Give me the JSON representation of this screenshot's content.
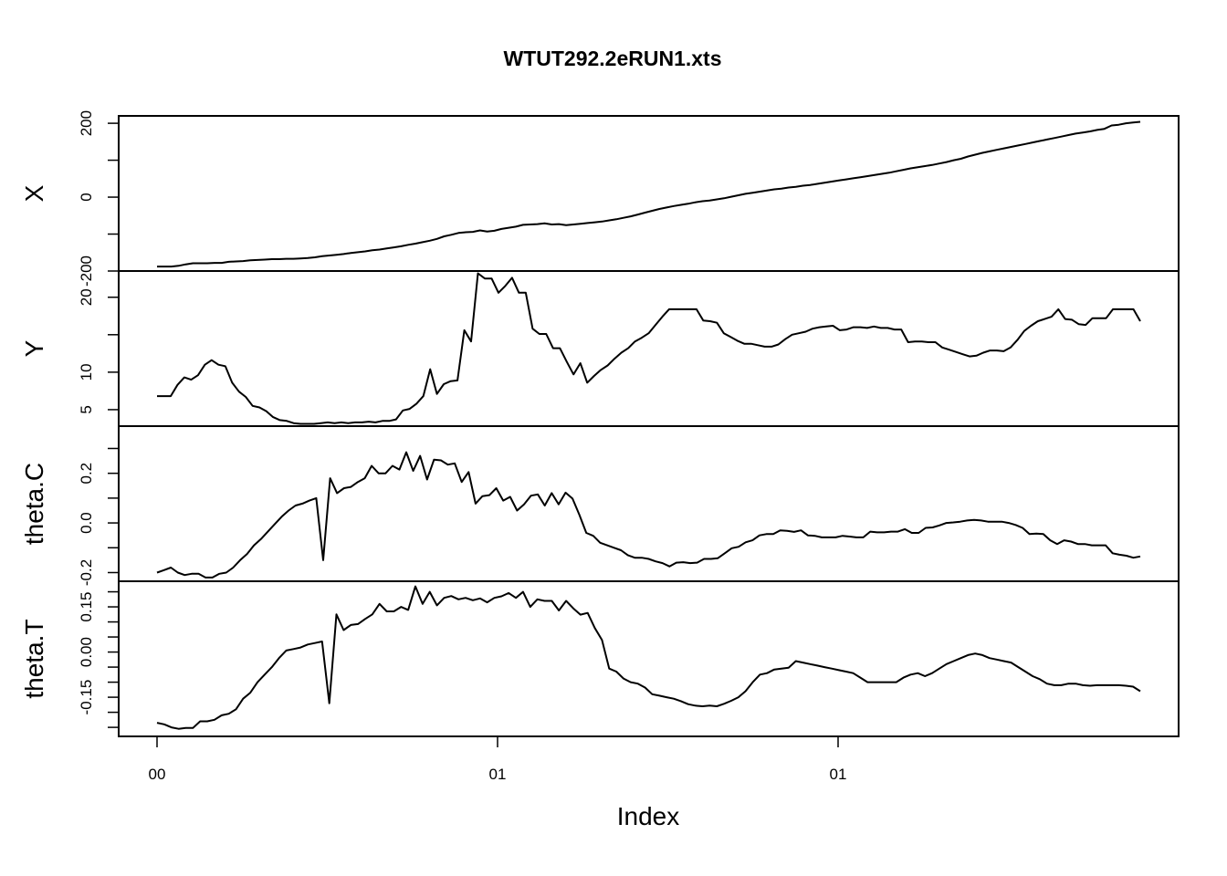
{
  "chart_data": {
    "type": "line",
    "title": "WTUT292.2eRUN1.xts",
    "xlabel": "Index",
    "x_tick_labels": [
      "00",
      "01",
      "01"
    ],
    "grid": false,
    "legend": "none",
    "line_color": "#000000",
    "panels": [
      {
        "name": "X",
        "ylabel": "X",
        "ylim": [
          -200,
          220
        ],
        "yticks": [
          -200,
          -100,
          0,
          100,
          200
        ],
        "ytick_labels": [
          "-200",
          "",
          "0",
          "",
          "200"
        ],
        "values": [
          -188,
          -188,
          -188,
          -186,
          -182,
          -179,
          -179,
          -179,
          -178,
          -178,
          -175,
          -174,
          -173,
          -171,
          -170,
          -169,
          -168,
          -168,
          -167,
          -167,
          -166,
          -165,
          -163,
          -160,
          -158,
          -156,
          -154,
          -151,
          -149,
          -147,
          -144,
          -142,
          -139,
          -136,
          -133,
          -129,
          -126,
          -122,
          -118,
          -113,
          -106,
          -102,
          -97,
          -95,
          -94,
          -90,
          -93,
          -91,
          -86,
          -83,
          -80,
          -75,
          -74,
          -73,
          -71,
          -74,
          -73,
          -76,
          -74,
          -72,
          -70,
          -68,
          -66,
          -63,
          -60,
          -56,
          -52,
          -47,
          -42,
          -37,
          -32,
          -28,
          -24,
          -21,
          -18,
          -14,
          -11,
          -9,
          -6,
          -3,
          1,
          5,
          9,
          12,
          15,
          18,
          21,
          23,
          26,
          28,
          31,
          33,
          36,
          39,
          42,
          45,
          48,
          51,
          54,
          57,
          60,
          63,
          66,
          70,
          74,
          78,
          81,
          84,
          87,
          91,
          95,
          100,
          104,
          110,
          115,
          120,
          124,
          128,
          132,
          136,
          140,
          144,
          148,
          152,
          156,
          160,
          164,
          168,
          172,
          175,
          178,
          182,
          185,
          194,
          196,
          200,
          202,
          204
        ]
      },
      {
        "name": "Y",
        "ylabel": "Y",
        "ylim": [
          2.8,
          23.5
        ],
        "yticks": [
          5,
          10,
          15,
          20
        ],
        "ytick_labels": [
          "5",
          "10",
          "",
          "20"
        ],
        "values": [
          6.8,
          6.8,
          6.8,
          8.3,
          9.3,
          9.0,
          9.6,
          11.0,
          11.6,
          11.0,
          10.8,
          8.6,
          7.4,
          6.7,
          5.5,
          5.3,
          4.8,
          4.0,
          3.6,
          3.5,
          3.2,
          3.1,
          3.1,
          3.1,
          3.2,
          3.3,
          3.2,
          3.3,
          3.2,
          3.3,
          3.3,
          3.4,
          3.3,
          3.5,
          3.5,
          3.7,
          4.9,
          5.1,
          5.8,
          6.8,
          10.4,
          7.1,
          8.4,
          8.8,
          8.9,
          15.6,
          14.1,
          23.2,
          22.5,
          22.5,
          20.6,
          21.5,
          22.6,
          20.6,
          20.6,
          15.8,
          15.1,
          15.1,
          13.2,
          13.2,
          11.4,
          9.7,
          11.2,
          8.6,
          9.5,
          10.3,
          10.9,
          11.8,
          12.6,
          13.2,
          14.1,
          14.6,
          15.2,
          16.3,
          17.4,
          18.4,
          18.4,
          18.4,
          18.4,
          18.4,
          16.9,
          16.8,
          16.6,
          15.2,
          14.7,
          14.2,
          13.8,
          13.8,
          13.6,
          13.4,
          13.4,
          13.7,
          14.4,
          15.0,
          15.2,
          15.4,
          15.8,
          16.0,
          16.1,
          16.2,
          15.6,
          15.7,
          16.0,
          16.0,
          15.9,
          16.1,
          15.9,
          15.9,
          15.7,
          15.7,
          14.0,
          14.1,
          14.1,
          14.0,
          14.0,
          13.3,
          13.0,
          12.7,
          12.4,
          12.1,
          12.2,
          12.6,
          12.9,
          12.9,
          12.8,
          13.3,
          14.3,
          15.5,
          16.2,
          16.8,
          17.1,
          17.4,
          18.4,
          17.1,
          17.0,
          16.4,
          16.3,
          17.2,
          17.2,
          17.2,
          18.4,
          18.4,
          18.4,
          18.4,
          16.8
        ]
      },
      {
        "name": "theta.C",
        "ylabel": "theta.C",
        "ylim": [
          -0.235,
          0.39
        ],
        "yticks": [
          -0.2,
          -0.1,
          0.0,
          0.1,
          0.2,
          0.3
        ],
        "ytick_labels": [
          "-0.2",
          "",
          "0.0",
          "",
          "0.2",
          ""
        ],
        "values": [
          -0.2,
          -0.19,
          -0.18,
          -0.2,
          -0.21,
          -0.205,
          -0.205,
          -0.22,
          -0.22,
          -0.205,
          -0.2,
          -0.18,
          -0.15,
          -0.125,
          -0.09,
          -0.065,
          -0.035,
          -0.005,
          0.025,
          0.05,
          0.07,
          0.078,
          0.09,
          0.1,
          -0.15,
          0.18,
          0.12,
          0.14,
          0.145,
          0.165,
          0.18,
          0.23,
          0.2,
          0.2,
          0.23,
          0.215,
          0.285,
          0.21,
          0.27,
          0.175,
          0.255,
          0.252,
          0.235,
          0.24,
          0.165,
          0.205,
          0.078,
          0.108,
          0.112,
          0.14,
          0.09,
          0.105,
          0.05,
          0.075,
          0.11,
          0.115,
          0.07,
          0.12,
          0.075,
          0.122,
          0.098,
          0.032,
          -0.04,
          -0.052,
          -0.08,
          -0.09,
          -0.1,
          -0.11,
          -0.13,
          -0.14,
          -0.14,
          -0.145,
          -0.155,
          -0.162,
          -0.175,
          -0.16,
          -0.158,
          -0.162,
          -0.16,
          -0.145,
          -0.145,
          -0.142,
          -0.122,
          -0.102,
          -0.096,
          -0.078,
          -0.07,
          -0.05,
          -0.045,
          -0.045,
          -0.03,
          -0.032,
          -0.036,
          -0.03,
          -0.05,
          -0.052,
          -0.058,
          -0.058,
          -0.058,
          -0.052,
          -0.055,
          -0.058,
          -0.058,
          -0.035,
          -0.038,
          -0.038,
          -0.035,
          -0.035,
          -0.025,
          -0.04,
          -0.04,
          -0.02,
          -0.018,
          -0.01,
          0.0,
          0.002,
          0.005,
          0.01,
          0.012,
          0.01,
          0.005,
          0.005,
          0.005,
          0.0,
          -0.008,
          -0.02,
          -0.045,
          -0.043,
          -0.045,
          -0.07,
          -0.085,
          -0.07,
          -0.075,
          -0.085,
          -0.085,
          -0.09,
          -0.09,
          -0.09,
          -0.122,
          -0.128,
          -0.132,
          -0.14,
          -0.135
        ]
      },
      {
        "name": "theta.T",
        "ylabel": "theta.T",
        "ylim": [
          -0.28,
          0.235
        ],
        "yticks": [
          -0.25,
          -0.2,
          -0.15,
          -0.1,
          -0.05,
          0.0,
          0.05,
          0.1,
          0.15,
          0.2
        ],
        "ytick_labels": [
          "",
          "",
          "-0.15",
          "",
          "",
          "0.00",
          "",
          "",
          "0.15",
          ""
        ],
        "values": [
          -0.235,
          -0.24,
          -0.25,
          -0.255,
          -0.252,
          -0.252,
          -0.23,
          -0.23,
          -0.225,
          -0.21,
          -0.205,
          -0.19,
          -0.155,
          -0.135,
          -0.1,
          -0.075,
          -0.05,
          -0.02,
          0.005,
          0.01,
          0.015,
          0.025,
          0.03,
          0.035,
          -0.17,
          0.125,
          0.073,
          0.09,
          0.093,
          0.11,
          0.125,
          0.16,
          0.135,
          0.135,
          0.15,
          0.14,
          0.218,
          0.16,
          0.2,
          0.155,
          0.18,
          0.186,
          0.175,
          0.18,
          0.172,
          0.178,
          0.165,
          0.18,
          0.185,
          0.196,
          0.18,
          0.2,
          0.15,
          0.175,
          0.17,
          0.17,
          0.138,
          0.17,
          0.145,
          0.124,
          0.13,
          0.08,
          0.04,
          -0.055,
          -0.065,
          -0.088,
          -0.1,
          -0.105,
          -0.118,
          -0.14,
          -0.145,
          -0.15,
          -0.155,
          -0.163,
          -0.173,
          -0.178,
          -0.18,
          -0.178,
          -0.18,
          -0.172,
          -0.162,
          -0.15,
          -0.13,
          -0.1,
          -0.075,
          -0.07,
          -0.058,
          -0.055,
          -0.052,
          -0.03,
          -0.035,
          -0.04,
          -0.045,
          -0.05,
          -0.055,
          -0.06,
          -0.065,
          -0.07,
          -0.085,
          -0.1,
          -0.1,
          -0.1,
          -0.1,
          -0.1,
          -0.085,
          -0.075,
          -0.07,
          -0.08,
          -0.07,
          -0.055,
          -0.04,
          -0.03,
          -0.02,
          -0.01,
          -0.005,
          -0.01,
          -0.02,
          -0.025,
          -0.03,
          -0.035,
          -0.05,
          -0.065,
          -0.08,
          -0.09,
          -0.105,
          -0.11,
          -0.11,
          -0.105,
          -0.105,
          -0.11,
          -0.112,
          -0.11,
          -0.11,
          -0.11,
          -0.11,
          -0.112,
          -0.115,
          -0.13
        ]
      }
    ]
  }
}
